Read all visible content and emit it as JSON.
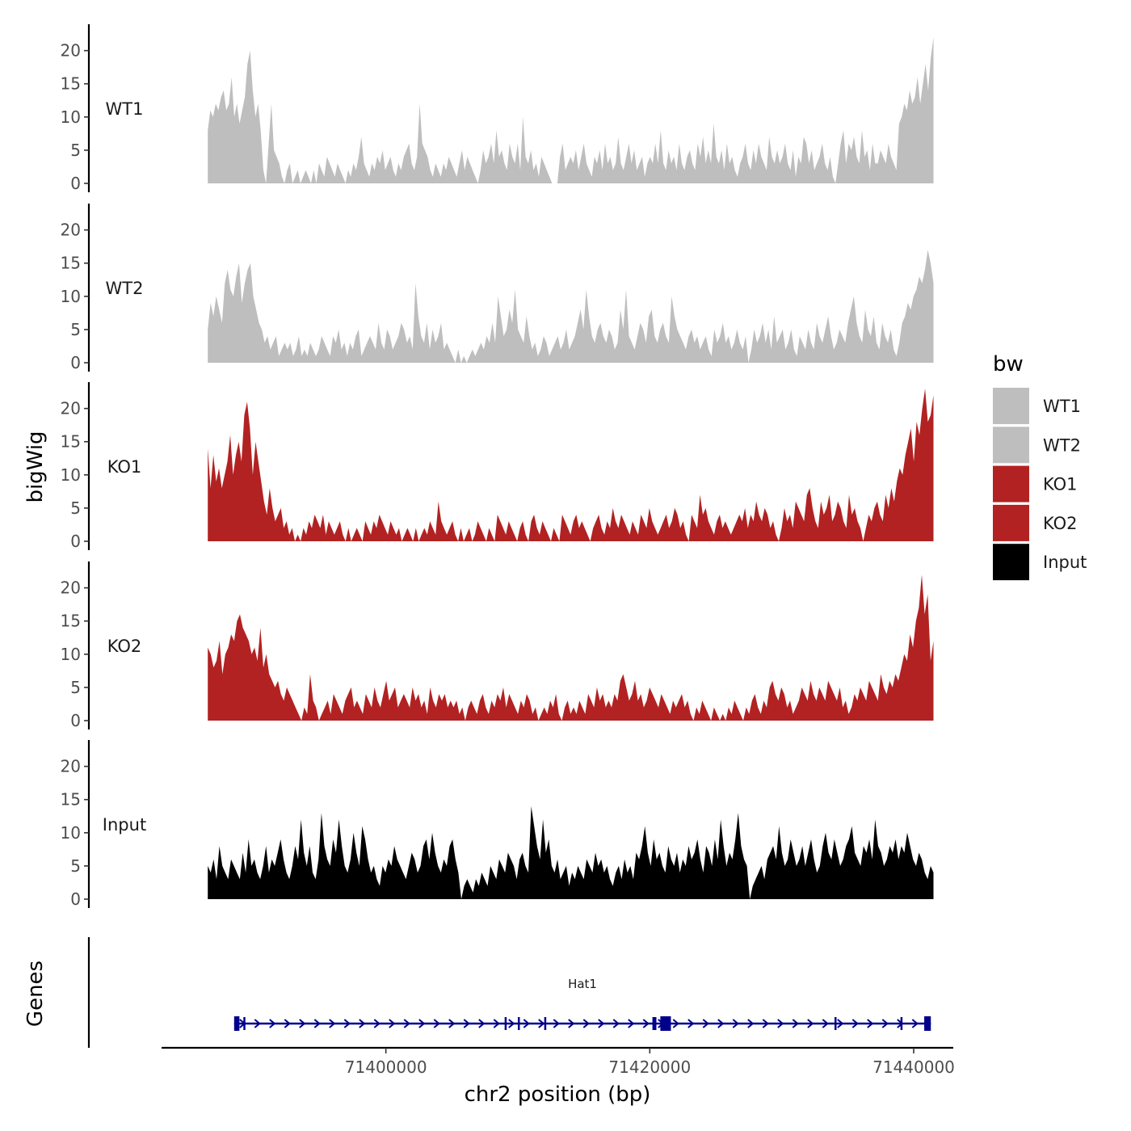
{
  "chart_data": {
    "type": "area",
    "title": "",
    "ylabel": "bigWig",
    "xlabel": "chr2 position (bp)",
    "genes_label": "Genes",
    "xlim": [
      71383000,
      71443000
    ],
    "ylim": [
      0,
      23
    ],
    "yticks": [
      0,
      5,
      10,
      15,
      20
    ],
    "x_tick_values": [
      71400000,
      71420000,
      71440000
    ],
    "x_tick_labels": [
      "71400000",
      "71420000",
      "71440000"
    ],
    "data_x_range": [
      71386500,
      71441500
    ],
    "legend": {
      "title": "bw",
      "position": "right",
      "entries": [
        {
          "label": "WT1",
          "color": "#bebebe"
        },
        {
          "label": "WT2",
          "color": "#bebebe"
        },
        {
          "label": "KO1",
          "color": "#b22222"
        },
        {
          "label": "KO2",
          "color": "#b22222"
        },
        {
          "label": "Input",
          "color": "#000000"
        }
      ]
    },
    "series": [
      {
        "name": "WT1",
        "color": "#bebebe",
        "values": [
          8,
          11,
          10,
          12,
          11,
          13,
          14,
          11,
          12,
          16,
          10,
          12,
          9,
          11,
          13,
          18,
          20,
          14,
          10,
          12,
          8,
          2,
          0,
          6,
          12,
          5,
          4,
          3,
          1,
          0,
          2,
          3,
          0,
          1,
          2,
          0,
          1,
          2,
          1,
          0,
          2,
          0,
          3,
          2,
          1,
          4,
          3,
          2,
          1,
          3,
          2,
          1,
          0,
          2,
          1,
          3,
          2,
          4,
          7,
          3,
          2,
          1,
          3,
          2,
          4,
          3,
          5,
          2,
          3,
          4,
          2,
          1,
          3,
          2,
          4,
          5,
          6,
          3,
          2,
          4,
          12,
          6,
          5,
          4,
          2,
          1,
          3,
          2,
          1,
          3,
          2,
          4,
          3,
          2,
          1,
          3,
          5,
          2,
          4,
          3,
          2,
          1,
          0,
          2,
          5,
          3,
          4,
          6,
          3,
          8,
          4,
          5,
          3,
          2,
          6,
          4,
          3,
          6,
          2,
          10,
          4,
          3,
          5,
          2,
          3,
          1,
          4,
          3,
          2,
          1,
          0,
          0,
          0,
          4,
          6,
          2,
          3,
          4,
          3,
          5,
          2,
          4,
          6,
          3,
          2,
          1,
          4,
          3,
          5,
          2,
          6,
          3,
          4,
          2,
          3,
          7,
          3,
          2,
          4,
          6,
          3,
          5,
          2,
          3,
          4,
          1,
          3,
          4,
          3,
          6,
          3,
          8,
          3,
          2,
          5,
          3,
          4,
          2,
          6,
          3,
          2,
          4,
          5,
          3,
          2,
          6,
          4,
          7,
          3,
          5,
          3,
          9,
          4,
          3,
          5,
          2,
          6,
          3,
          4,
          2,
          1,
          3,
          4,
          6,
          3,
          2,
          5,
          3,
          6,
          4,
          3,
          2,
          7,
          4,
          3,
          5,
          3,
          4,
          6,
          3,
          2,
          5,
          1,
          4,
          3,
          7,
          6,
          3,
          5,
          2,
          3,
          4,
          6,
          3,
          2,
          4,
          1,
          0,
          3,
          6,
          8,
          3,
          6,
          5,
          7,
          4,
          3,
          8,
          4,
          5,
          2,
          6,
          3,
          3,
          5,
          4,
          3,
          6,
          4,
          3,
          2,
          9,
          10,
          12,
          11,
          14,
          12,
          13,
          16,
          12,
          15,
          18,
          14,
          19,
          22
        ]
      },
      {
        "name": "WT2",
        "color": "#bebebe",
        "values": [
          5,
          9,
          7,
          10,
          8,
          6,
          12,
          14,
          11,
          10,
          13,
          15,
          9,
          12,
          14,
          15,
          10,
          8,
          6,
          5,
          3,
          4,
          2,
          3,
          4,
          1,
          2,
          3,
          2,
          3,
          1,
          2,
          4,
          1,
          2,
          1,
          3,
          2,
          1,
          2,
          4,
          3,
          2,
          1,
          4,
          3,
          5,
          2,
          3,
          1,
          3,
          2,
          4,
          5,
          1,
          2,
          3,
          4,
          3,
          2,
          6,
          3,
          2,
          5,
          4,
          2,
          3,
          4,
          6,
          5,
          3,
          4,
          2,
          12,
          7,
          4,
          3,
          6,
          2,
          5,
          3,
          4,
          6,
          2,
          3,
          2,
          1,
          0,
          2,
          0,
          1,
          0,
          1,
          2,
          1,
          2,
          3,
          2,
          4,
          3,
          6,
          3,
          10,
          7,
          4,
          5,
          8,
          6,
          11,
          5,
          4,
          3,
          7,
          4,
          2,
          3,
          1,
          2,
          4,
          3,
          1,
          2,
          3,
          4,
          2,
          3,
          5,
          2,
          3,
          4,
          6,
          8,
          5,
          11,
          7,
          4,
          3,
          5,
          6,
          4,
          3,
          5,
          4,
          2,
          3,
          8,
          5,
          11,
          4,
          3,
          2,
          4,
          6,
          5,
          3,
          7,
          8,
          4,
          3,
          5,
          6,
          4,
          3,
          10,
          7,
          5,
          4,
          3,
          2,
          4,
          5,
          3,
          4,
          2,
          3,
          4,
          2,
          1,
          5,
          3,
          4,
          6,
          3,
          4,
          2,
          3,
          5,
          3,
          2,
          4,
          0,
          2,
          5,
          3,
          4,
          6,
          3,
          5,
          2,
          7,
          3,
          4,
          5,
          2,
          3,
          5,
          2,
          1,
          4,
          3,
          2,
          5,
          3,
          2,
          6,
          4,
          3,
          5,
          7,
          4,
          2,
          3,
          5,
          4,
          3,
          6,
          8,
          10,
          6,
          4,
          3,
          8,
          5,
          4,
          7,
          3,
          2,
          6,
          4,
          3,
          5,
          2,
          1,
          3,
          6,
          7,
          9,
          8,
          10,
          11,
          13,
          12,
          14,
          17,
          15,
          12
        ]
      },
      {
        "name": "KO1",
        "color": "#b22222",
        "values": [
          14,
          8,
          13,
          9,
          11,
          8,
          10,
          12,
          16,
          10,
          13,
          15,
          12,
          19,
          21,
          17,
          10,
          15,
          12,
          9,
          6,
          4,
          8,
          5,
          3,
          4,
          5,
          2,
          3,
          1,
          2,
          0,
          1,
          0,
          2,
          1,
          3,
          2,
          4,
          3,
          2,
          4,
          1,
          3,
          2,
          1,
          2,
          3,
          1,
          0,
          2,
          0,
          1,
          2,
          1,
          0,
          3,
          2,
          1,
          3,
          2,
          4,
          3,
          2,
          1,
          3,
          2,
          1,
          2,
          0,
          1,
          2,
          1,
          0,
          2,
          0,
          1,
          2,
          1,
          3,
          2,
          1,
          6,
          3,
          2,
          1,
          2,
          3,
          1,
          0,
          2,
          0,
          1,
          2,
          0,
          1,
          3,
          2,
          1,
          0,
          2,
          1,
          0,
          4,
          3,
          2,
          1,
          3,
          2,
          1,
          0,
          2,
          3,
          1,
          0,
          3,
          4,
          2,
          1,
          3,
          2,
          1,
          0,
          2,
          1,
          0,
          4,
          3,
          2,
          1,
          3,
          4,
          2,
          3,
          2,
          1,
          0,
          2,
          3,
          4,
          2,
          1,
          3,
          2,
          5,
          3,
          2,
          4,
          3,
          2,
          1,
          3,
          2,
          1,
          4,
          3,
          2,
          5,
          3,
          2,
          1,
          2,
          3,
          4,
          2,
          3,
          5,
          4,
          2,
          3,
          1,
          0,
          4,
          3,
          2,
          7,
          4,
          5,
          3,
          2,
          1,
          3,
          4,
          2,
          3,
          2,
          1,
          2,
          3,
          4,
          3,
          5,
          2,
          4,
          3,
          6,
          4,
          3,
          5,
          4,
          2,
          3,
          1,
          0,
          2,
          5,
          3,
          4,
          2,
          6,
          5,
          4,
          3,
          7,
          8,
          5,
          3,
          2,
          6,
          4,
          5,
          7,
          3,
          4,
          6,
          5,
          3,
          2,
          7,
          4,
          5,
          3,
          2,
          0,
          2,
          4,
          3,
          5,
          6,
          4,
          3,
          7,
          5,
          8,
          6,
          9,
          11,
          10,
          13,
          15,
          17,
          12,
          18,
          16,
          20,
          23,
          18,
          19,
          22
        ]
      },
      {
        "name": "KO2",
        "color": "#b22222",
        "values": [
          11,
          10,
          8,
          9,
          12,
          7,
          10,
          11,
          13,
          12,
          15,
          16,
          14,
          13,
          12,
          10,
          11,
          9,
          14,
          8,
          10,
          7,
          6,
          5,
          6,
          4,
          3,
          5,
          4,
          3,
          2,
          1,
          0,
          2,
          1,
          7,
          3,
          2,
          0,
          1,
          2,
          3,
          1,
          4,
          3,
          2,
          1,
          3,
          4,
          5,
          2,
          3,
          2,
          1,
          4,
          3,
          2,
          5,
          3,
          2,
          4,
          6,
          3,
          4,
          5,
          2,
          3,
          4,
          3,
          2,
          5,
          3,
          4,
          2,
          3,
          1,
          5,
          3,
          2,
          4,
          3,
          4,
          2,
          3,
          2,
          3,
          1,
          2,
          0,
          2,
          3,
          2,
          1,
          3,
          4,
          2,
          1,
          3,
          2,
          4,
          3,
          5,
          2,
          4,
          3,
          2,
          1,
          3,
          2,
          4,
          3,
          1,
          2,
          0,
          1,
          2,
          1,
          3,
          2,
          4,
          1,
          0,
          2,
          3,
          1,
          2,
          1,
          3,
          2,
          1,
          4,
          3,
          2,
          5,
          3,
          4,
          2,
          3,
          2,
          4,
          3,
          6,
          7,
          5,
          3,
          4,
          6,
          3,
          4,
          2,
          3,
          5,
          4,
          3,
          2,
          4,
          3,
          2,
          1,
          3,
          2,
          3,
          4,
          2,
          3,
          1,
          0,
          2,
          1,
          3,
          2,
          1,
          0,
          2,
          1,
          0,
          1,
          0,
          2,
          1,
          3,
          2,
          1,
          0,
          2,
          1,
          3,
          4,
          2,
          1,
          3,
          2,
          5,
          6,
          4,
          3,
          5,
          4,
          2,
          3,
          1,
          2,
          3,
          5,
          4,
          3,
          6,
          4,
          3,
          5,
          4,
          3,
          6,
          5,
          4,
          3,
          5,
          2,
          3,
          1,
          2,
          4,
          3,
          5,
          4,
          3,
          6,
          5,
          4,
          3,
          7,
          5,
          4,
          6,
          5,
          7,
          6,
          8,
          10,
          9,
          13,
          11,
          15,
          17,
          22,
          16,
          19,
          9,
          12
        ]
      },
      {
        "name": "Input",
        "color": "#000000",
        "values": [
          5,
          4,
          6,
          3,
          8,
          5,
          4,
          3,
          6,
          5,
          4,
          3,
          7,
          4,
          9,
          5,
          6,
          4,
          3,
          5,
          8,
          4,
          6,
          5,
          7,
          9,
          6,
          4,
          3,
          5,
          8,
          6,
          12,
          7,
          5,
          8,
          4,
          3,
          6,
          13,
          8,
          6,
          5,
          9,
          7,
          12,
          8,
          5,
          4,
          6,
          10,
          7,
          5,
          11,
          9,
          6,
          4,
          5,
          3,
          2,
          5,
          4,
          6,
          5,
          8,
          6,
          5,
          4,
          3,
          5,
          7,
          6,
          4,
          5,
          8,
          9,
          6,
          10,
          7,
          5,
          4,
          6,
          5,
          8,
          9,
          6,
          4,
          0,
          2,
          3,
          2,
          1,
          3,
          2,
          4,
          3,
          2,
          5,
          4,
          3,
          6,
          5,
          4,
          7,
          6,
          5,
          3,
          6,
          7,
          5,
          4,
          14,
          11,
          8,
          6,
          12,
          7,
          9,
          5,
          4,
          6,
          3,
          4,
          5,
          2,
          4,
          3,
          5,
          4,
          3,
          6,
          5,
          4,
          7,
          5,
          6,
          4,
          5,
          3,
          2,
          4,
          5,
          3,
          6,
          4,
          5,
          3,
          7,
          6,
          8,
          11,
          7,
          5,
          9,
          6,
          7,
          5,
          4,
          8,
          6,
          5,
          7,
          4,
          6,
          5,
          8,
          6,
          7,
          9,
          6,
          4,
          8,
          7,
          5,
          9,
          6,
          12,
          8,
          5,
          7,
          6,
          9,
          13,
          8,
          6,
          5,
          0,
          2,
          3,
          4,
          5,
          3,
          6,
          7,
          8,
          6,
          11,
          7,
          5,
          6,
          9,
          7,
          5,
          6,
          8,
          5,
          7,
          9,
          6,
          4,
          5,
          8,
          10,
          7,
          6,
          9,
          7,
          5,
          6,
          8,
          9,
          11,
          7,
          6,
          5,
          8,
          7,
          9,
          6,
          12,
          8,
          7,
          5,
          6,
          8,
          7,
          9,
          6,
          8,
          7,
          10,
          8,
          6,
          5,
          7,
          6,
          4,
          3,
          5,
          4
        ]
      }
    ],
    "genes": [
      {
        "name": "Hat1",
        "start": 71388500,
        "end": 71441300,
        "strand": "+",
        "exon_starts": [
          71388500,
          71389200,
          71409000,
          71410000,
          71412000,
          71420200,
          71420800,
          71434000,
          71439000,
          71440800
        ],
        "exon_ends": [
          71388900,
          71389350,
          71409100,
          71410100,
          71412100,
          71420500,
          71421600,
          71434100,
          71439100,
          71441300
        ]
      }
    ]
  }
}
